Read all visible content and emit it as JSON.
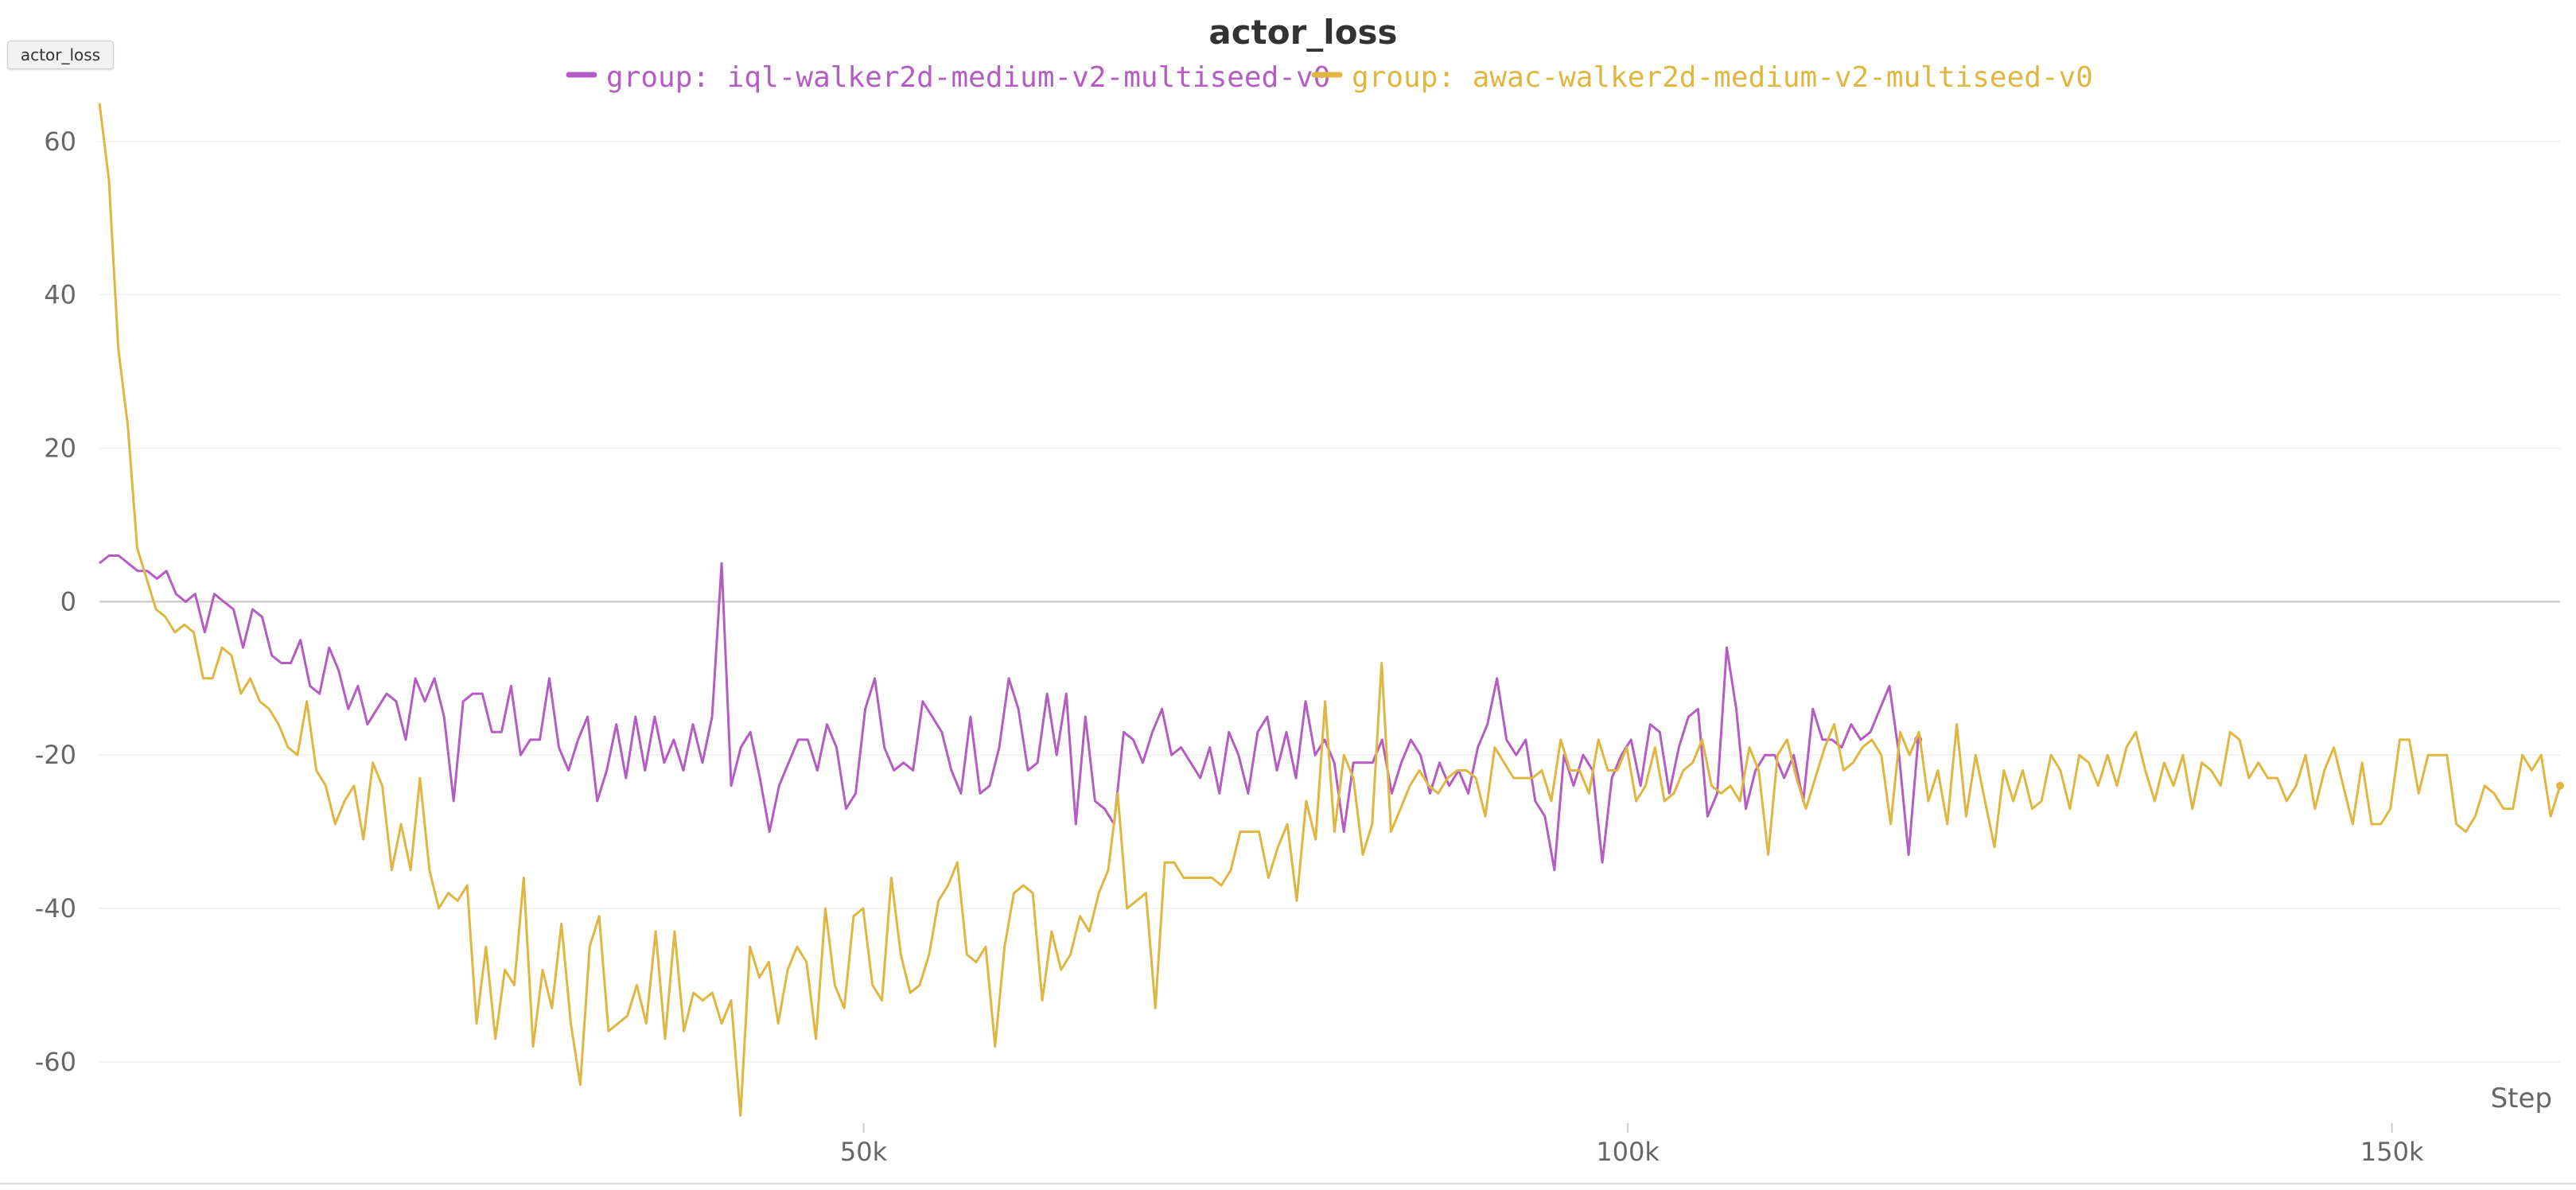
{
  "panel": {
    "tag_label": "actor_loss"
  },
  "chart_data": {
    "type": "line",
    "title": "actor_loss",
    "xlabel": "Step",
    "ylabel": "",
    "xlim": [
      0,
      161000
    ],
    "ylim": [
      -68,
      66
    ],
    "x_ticks": [
      50000,
      100000,
      150000
    ],
    "x_tick_labels": [
      "50k",
      "100k",
      "150k"
    ],
    "y_ticks": [
      60,
      40,
      20,
      0,
      -20,
      -40,
      -60
    ],
    "y_tick_labels": [
      "60",
      "40",
      "20",
      "0",
      "-20",
      "-40",
      "-60"
    ],
    "grid": true,
    "legend_position": "top-center",
    "series": [
      {
        "name": "group: iql-walker2d-medium-v2-multiseed-v0",
        "color": "#b45cc3",
        "x_start": 0,
        "x_end": 119000,
        "values": [
          5,
          6,
          6,
          5,
          4,
          4,
          3,
          4,
          1,
          0,
          1,
          -4,
          1,
          0,
          -1,
          -6,
          -1,
          -2,
          -7,
          -8,
          -8,
          -5,
          -11,
          -12,
          -6,
          -9,
          -14,
          -11,
          -16,
          -14,
          -12,
          -13,
          -18,
          -10,
          -13,
          -10,
          -15,
          -26,
          -13,
          -12,
          -12,
          -17,
          -17,
          -11,
          -20,
          -18,
          -18,
          -10,
          -19,
          -22,
          -18,
          -15,
          -26,
          -22,
          -16,
          -23,
          -15,
          -22,
          -15,
          -21,
          -18,
          -22,
          -16,
          -21,
          -15,
          5,
          -24,
          -19,
          -17,
          -23,
          -30,
          -24,
          -21,
          -18,
          -18,
          -22,
          -16,
          -19,
          -27,
          -25,
          -14,
          -10,
          -19,
          -22,
          -21,
          -22,
          -13,
          -15,
          -17,
          -22,
          -25,
          -15,
          -25,
          -24,
          -19,
          -10,
          -14,
          -22,
          -21,
          -12,
          -20,
          -12,
          -29,
          -15,
          -26,
          -27,
          -29,
          -17,
          -18,
          -21,
          -17,
          -14,
          -20,
          -19,
          -21,
          -23,
          -19,
          -25,
          -17,
          -20,
          -25,
          -17,
          -15,
          -22,
          -17,
          -23,
          -13,
          -20,
          -18,
          -21,
          -30,
          -21,
          -21,
          -21,
          -18,
          -25,
          -21,
          -18,
          -20,
          -25,
          -21,
          -24,
          -22,
          -25,
          -19,
          -16,
          -10,
          -18,
          -20,
          -18,
          -26,
          -28,
          -35,
          -20,
          -24,
          -20,
          -22,
          -34,
          -23,
          -20,
          -18,
          -24,
          -16,
          -17,
          -25,
          -19,
          -15,
          -14,
          -28,
          -25,
          -6,
          -14,
          -27,
          -22,
          -20,
          -20,
          -23,
          -20,
          -26,
          -14,
          -18,
          -18,
          -19,
          -16,
          -18,
          -17,
          -14,
          -11,
          -20,
          -33,
          -18
        ]
      },
      {
        "name": "group: awac-walker2d-medium-v2-multiseed-v0",
        "color": "#e0b540",
        "x_start": 0,
        "x_end": 161000,
        "values": [
          65,
          55,
          33,
          23,
          7,
          3,
          -1,
          -2,
          -4,
          -3,
          -4,
          -10,
          -10,
          -6,
          -7,
          -12,
          -10,
          -13,
          -14,
          -16,
          -19,
          -20,
          -13,
          -22,
          -24,
          -29,
          -26,
          -24,
          -31,
          -21,
          -24,
          -35,
          -29,
          -35,
          -23,
          -35,
          -40,
          -38,
          -39,
          -37,
          -55,
          -45,
          -57,
          -48,
          -50,
          -36,
          -58,
          -48,
          -53,
          -42,
          -55,
          -63,
          -45,
          -41,
          -56,
          -55,
          -54,
          -50,
          -55,
          -43,
          -57,
          -43,
          -56,
          -51,
          -52,
          -51,
          -55,
          -52,
          -67,
          -45,
          -49,
          -47,
          -55,
          -48,
          -45,
          -47,
          -57,
          -40,
          -50,
          -53,
          -41,
          -40,
          -50,
          -52,
          -36,
          -46,
          -51,
          -50,
          -46,
          -39,
          -37,
          -34,
          -46,
          -47,
          -45,
          -58,
          -45,
          -38,
          -37,
          -38,
          -52,
          -43,
          -48,
          -46,
          -41,
          -43,
          -38,
          -35,
          -25,
          -40,
          -39,
          -38,
          -53,
          -34,
          -34,
          -36,
          -36,
          -36,
          -36,
          -37,
          -35,
          -30,
          -30,
          -30,
          -36,
          -32,
          -29,
          -39,
          -26,
          -31,
          -13,
          -30,
          -20,
          -23,
          -33,
          -29,
          -8,
          -30,
          -27,
          -24,
          -22,
          -24,
          -25,
          -23,
          -22,
          -22,
          -23,
          -28,
          -19,
          -21,
          -23,
          -23,
          -23,
          -22,
          -26,
          -18,
          -22,
          -22,
          -25,
          -18,
          -22,
          -22,
          -19,
          -26,
          -24,
          -19,
          -26,
          -25,
          -22,
          -21,
          -18,
          -24,
          -25,
          -24,
          -26,
          -19,
          -22,
          -33,
          -20,
          -18,
          -23,
          -27,
          -23,
          -19,
          -16,
          -22,
          -21,
          -19,
          -18,
          -20,
          -29,
          -17,
          -20,
          -17,
          -26,
          -22,
          -29,
          -16,
          -28,
          -20,
          -26,
          -32,
          -22,
          -26,
          -22,
          -27,
          -26,
          -20,
          -22,
          -27,
          -20,
          -21,
          -24,
          -20,
          -24,
          -19,
          -17,
          -22,
          -26,
          -21,
          -24,
          -20,
          -27,
          -21,
          -22,
          -24,
          -17,
          -18,
          -23,
          -21,
          -23,
          -23,
          -26,
          -24,
          -20,
          -27,
          -22,
          -19,
          -24,
          -29,
          -21,
          -29,
          -29,
          -27,
          -18,
          -18,
          -25,
          -20,
          -20,
          -20,
          -29,
          -30,
          -28,
          -24,
          -25,
          -27,
          -27,
          -20,
          -22,
          -20,
          -28,
          -24
        ]
      }
    ]
  }
}
